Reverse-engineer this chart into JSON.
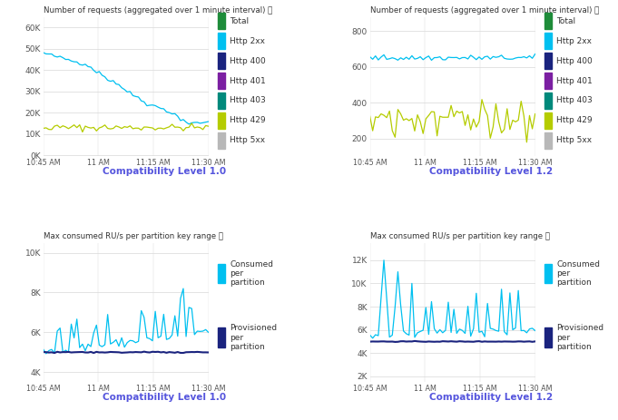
{
  "title_top_left": "Number of requests (aggregated over 1 minute interval) ⓘ",
  "title_top_right": "Number of requests (aggregated over 1 minute interval) ⓘ",
  "title_bot_left": "Max consumed RU/s per partition key range ⓘ",
  "title_bot_right": "Max consumed RU/s per partition key range ⓘ",
  "subtitle_tl": "Compatibility Level 1.0",
  "subtitle_tr": "Compatibility Level 1.2",
  "subtitle_bl": "Compatibility Level 1.0",
  "subtitle_br": "Compatibility Level 1.2",
  "n_points": 60,
  "xtick_labels": [
    "10:45 AM",
    "11 AM",
    "11:15 AM",
    "11:30 AM"
  ],
  "legend_entries_top": [
    "Total",
    "Http 2xx",
    "Http 400",
    "Http 401",
    "Http 403",
    "Http 429",
    "Http 5xx"
  ],
  "legend_colors_top": [
    "#1e8c3a",
    "#00c0f0",
    "#1a237e",
    "#7b1fa2",
    "#00897b",
    "#b5cc00",
    "#b8b8b8"
  ],
  "legend_entries_bot": [
    "Consumed\nper\npartition",
    "Provisioned\nper\npartition"
  ],
  "legend_colors_bot": [
    "#00c0f0",
    "#1a237e"
  ],
  "bg_color": "#ffffff",
  "plot_bg_color": "#ffffff",
  "grid_color": "#d8d8d8",
  "axis_label_color": "#555555",
  "subtitle_color": "#5555dd",
  "title_color": "#333333",
  "legend_text_color": "#333333"
}
